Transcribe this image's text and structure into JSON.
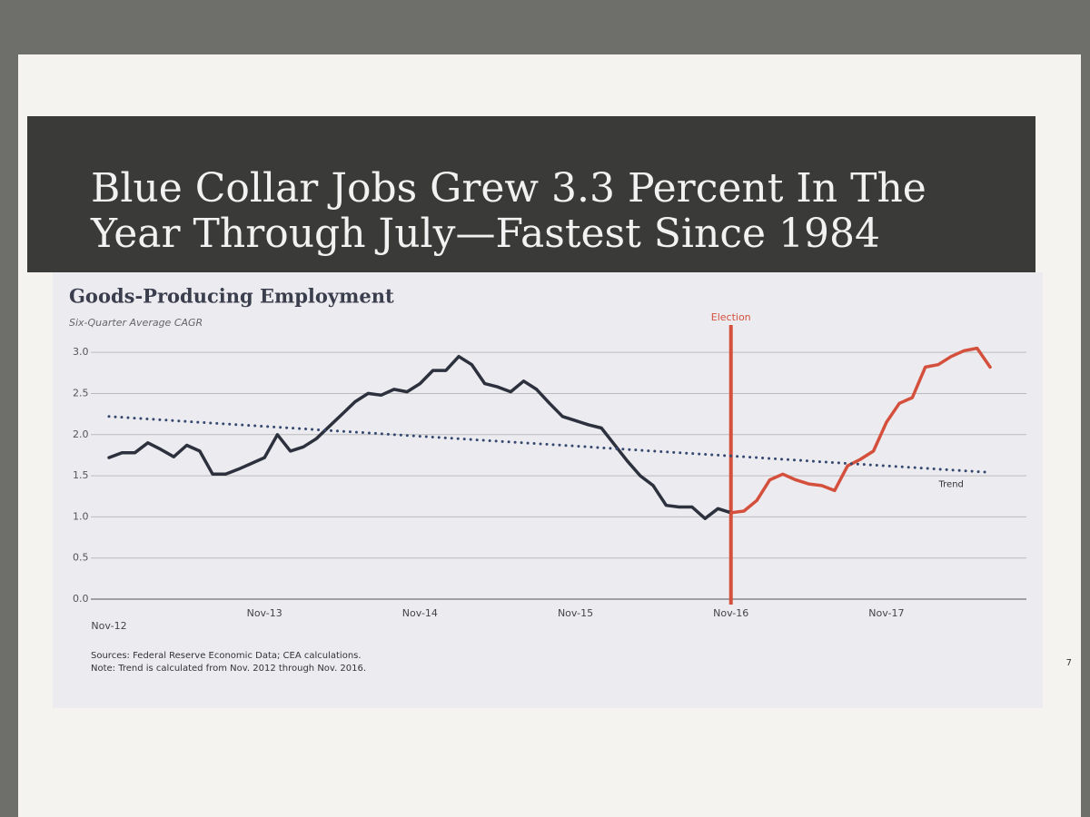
{
  "header": {
    "title": "Blue Collar Jobs Grew 3.3 Percent In The Year Through July—Fastest Since 1984"
  },
  "chart_data": {
    "type": "line",
    "title": "Goods-Producing Employment",
    "subtitle": "Six-Quarter Average CAGR",
    "categories": [
      "Nov-12",
      null,
      null,
      null,
      null,
      null,
      null,
      null,
      null,
      null,
      null,
      null,
      "Nov-13",
      null,
      null,
      null,
      null,
      null,
      null,
      null,
      null,
      null,
      null,
      null,
      "Nov-14",
      null,
      null,
      null,
      null,
      null,
      null,
      null,
      null,
      null,
      null,
      null,
      "Nov-15",
      null,
      null,
      null,
      null,
      null,
      null,
      null,
      null,
      null,
      null,
      null,
      "Nov-16",
      null,
      null,
      null,
      null,
      null,
      null,
      null,
      null,
      null,
      null,
      null,
      "Nov-17",
      null,
      null,
      null,
      null,
      null,
      null,
      null,
      null
    ],
    "series": [
      {
        "color": "#2c313d",
        "style": "solid",
        "values": [
          1.72,
          1.78,
          1.78,
          1.9,
          1.82,
          1.73,
          1.87,
          1.8,
          1.52,
          1.52,
          1.58,
          1.65,
          1.72,
          2.0,
          1.8,
          1.85,
          1.95,
          2.1,
          2.25,
          2.4,
          2.5,
          2.48,
          2.55,
          2.52,
          2.62,
          2.78,
          2.78,
          2.95,
          2.85,
          2.62,
          2.58,
          2.52,
          2.65,
          2.55,
          2.38,
          2.22,
          2.17,
          2.12,
          2.08,
          1.88,
          1.68,
          1.5,
          1.38,
          1.14,
          1.12,
          1.12,
          0.98,
          1.1,
          1.05,
          null,
          null,
          null,
          null,
          null,
          null,
          null,
          null,
          null,
          null,
          null,
          null,
          null,
          null,
          null,
          null,
          null,
          null,
          null,
          null
        ]
      },
      {
        "color": "#d4503c",
        "style": "solid",
        "values": [
          null,
          null,
          null,
          null,
          null,
          null,
          null,
          null,
          null,
          null,
          null,
          null,
          null,
          null,
          null,
          null,
          null,
          null,
          null,
          null,
          null,
          null,
          null,
          null,
          null,
          null,
          null,
          null,
          null,
          null,
          null,
          null,
          null,
          null,
          null,
          null,
          null,
          null,
          null,
          null,
          null,
          null,
          null,
          null,
          null,
          null,
          null,
          null,
          1.05,
          1.07,
          1.2,
          1.45,
          1.52,
          1.45,
          1.4,
          1.38,
          1.32,
          1.62,
          1.7,
          1.8,
          2.15,
          2.38,
          2.45,
          2.82,
          2.85,
          2.95,
          3.02,
          3.05,
          2.82
        ]
      },
      {
        "name": "Trend",
        "color": "#34476e",
        "style": "dotted",
        "values": [
          2.22,
          2.21,
          2.2,
          2.19,
          2.18,
          2.17,
          2.16,
          2.15,
          2.14,
          2.13,
          2.12,
          2.11,
          2.1,
          2.09,
          2.08,
          2.07,
          2.06,
          2.05,
          2.04,
          2.03,
          2.02,
          2.01,
          2.0,
          1.99,
          1.98,
          1.97,
          1.96,
          1.95,
          1.94,
          1.93,
          1.92,
          1.91,
          1.9,
          1.89,
          1.88,
          1.87,
          1.86,
          1.85,
          1.84,
          1.83,
          1.82,
          1.81,
          1.8,
          1.79,
          1.78,
          1.77,
          1.76,
          1.75,
          1.74,
          1.73,
          1.72,
          1.71,
          1.7,
          1.69,
          1.68,
          1.67,
          1.66,
          1.65,
          1.64,
          1.63,
          1.62,
          1.61,
          1.6,
          1.59,
          1.58,
          1.57,
          1.56,
          1.55,
          1.54
        ]
      }
    ],
    "annotation": {
      "text": "Election",
      "x": "Nov-16",
      "color": "#d4503c"
    },
    "ylim": [
      0,
      3.2
    ],
    "yticks": [
      {
        "value": 0,
        "label": "0.0"
      },
      0.5,
      {
        "value": 1,
        "label": "1.0"
      },
      1.5,
      {
        "value": 2,
        "label": "2.0"
      },
      2.5,
      {
        "value": 3,
        "label": "3.0"
      }
    ],
    "grid": true
  },
  "footer": {
    "sources": "Sources: Federal Reserve Economic Data; CEA calculations.",
    "note": "Note: Trend is calculated from Nov. 2012 through Nov. 2016."
  },
  "page_number": "7"
}
